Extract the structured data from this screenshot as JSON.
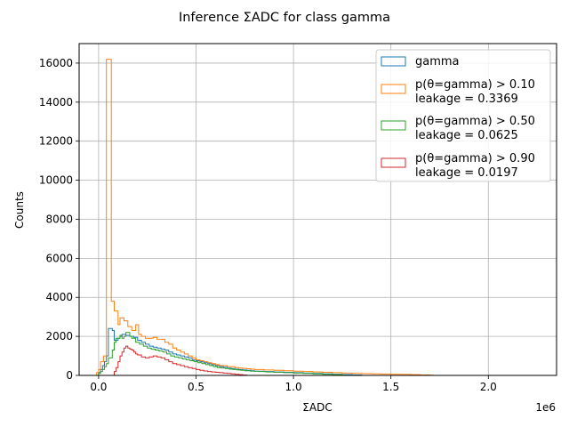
{
  "chart_data": {
    "type": "histogram",
    "title": "Inference ΣADC for class gamma",
    "xlabel": "ΣADC",
    "ylabel": "Counts",
    "x_offset_label": "1e6",
    "xlim": [
      -0.1,
      2.35
    ],
    "ylim": [
      0,
      17000
    ],
    "x_ticks": [
      0.0,
      0.5,
      1.0,
      1.5,
      2.0
    ],
    "x_tick_labels": [
      "0.0",
      "0.5",
      "1.0",
      "1.5",
      "2.0"
    ],
    "y_ticks": [
      0,
      2000,
      4000,
      6000,
      8000,
      10000,
      12000,
      14000,
      16000
    ],
    "y_tick_labels": [
      "0",
      "2000",
      "4000",
      "6000",
      "8000",
      "10000",
      "12000",
      "14000",
      "16000"
    ],
    "grid": true,
    "legend_position": "top-right",
    "series": [
      {
        "name": "gamma",
        "leakage": "",
        "color": "#1f77b4",
        "values": [
          [
            0.0,
            150
          ],
          [
            0.01,
            300
          ],
          [
            0.02,
            500
          ],
          [
            0.03,
            700
          ],
          [
            0.04,
            1000
          ],
          [
            0.05,
            2400
          ],
          [
            0.07,
            2300
          ],
          [
            0.08,
            1800
          ],
          [
            0.1,
            1900
          ],
          [
            0.11,
            2000
          ],
          [
            0.12,
            2100
          ],
          [
            0.14,
            2050
          ],
          [
            0.16,
            2000
          ],
          [
            0.18,
            1950
          ],
          [
            0.2,
            1800
          ],
          [
            0.22,
            1700
          ],
          [
            0.24,
            1600
          ],
          [
            0.26,
            1500
          ],
          [
            0.28,
            1450
          ],
          [
            0.3,
            1400
          ],
          [
            0.32,
            1350
          ],
          [
            0.34,
            1300
          ],
          [
            0.36,
            1200
          ],
          [
            0.38,
            1100
          ],
          [
            0.4,
            1050
          ],
          [
            0.42,
            1000
          ],
          [
            0.44,
            950
          ],
          [
            0.46,
            900
          ],
          [
            0.48,
            800
          ],
          [
            0.5,
            750
          ],
          [
            0.52,
            700
          ],
          [
            0.54,
            650
          ],
          [
            0.56,
            600
          ],
          [
            0.58,
            550
          ],
          [
            0.6,
            500
          ],
          [
            0.62,
            450
          ],
          [
            0.64,
            420
          ],
          [
            0.66,
            380
          ],
          [
            0.68,
            350
          ],
          [
            0.7,
            320
          ],
          [
            0.72,
            300
          ],
          [
            0.74,
            280
          ],
          [
            0.76,
            260
          ],
          [
            0.78,
            240
          ],
          [
            0.8,
            220
          ],
          [
            0.85,
            200
          ],
          [
            0.9,
            180
          ],
          [
            0.95,
            160
          ],
          [
            1.0,
            140
          ],
          [
            1.05,
            120
          ],
          [
            1.1,
            100
          ],
          [
            1.15,
            80
          ],
          [
            1.2,
            60
          ],
          [
            1.25,
            40
          ],
          [
            1.3,
            25
          ],
          [
            1.35,
            0
          ]
        ]
      },
      {
        "name": "p(θ=gamma) > 0.10",
        "leakage": "leakage = 0.3369",
        "color": "#ff7f0e",
        "values": [
          [
            -0.01,
            150
          ],
          [
            0.0,
            300
          ],
          [
            0.01,
            700
          ],
          [
            0.025,
            1000
          ],
          [
            0.04,
            16200
          ],
          [
            0.065,
            3800
          ],
          [
            0.08,
            3300
          ],
          [
            0.1,
            2600
          ],
          [
            0.11,
            2950
          ],
          [
            0.13,
            2800
          ],
          [
            0.15,
            2500
          ],
          [
            0.17,
            2300
          ],
          [
            0.19,
            2600
          ],
          [
            0.205,
            2100
          ],
          [
            0.22,
            2000
          ],
          [
            0.24,
            1900
          ],
          [
            0.26,
            1900
          ],
          [
            0.28,
            1950
          ],
          [
            0.3,
            1850
          ],
          [
            0.32,
            1850
          ],
          [
            0.34,
            1700
          ],
          [
            0.36,
            1600
          ],
          [
            0.38,
            1400
          ],
          [
            0.4,
            1300
          ],
          [
            0.42,
            1200
          ],
          [
            0.44,
            1100
          ],
          [
            0.46,
            1000
          ],
          [
            0.48,
            900
          ],
          [
            0.5,
            800
          ],
          [
            0.52,
            750
          ],
          [
            0.54,
            700
          ],
          [
            0.56,
            650
          ],
          [
            0.58,
            600
          ],
          [
            0.6,
            550
          ],
          [
            0.62,
            500
          ],
          [
            0.64,
            500
          ],
          [
            0.66,
            450
          ],
          [
            0.68,
            450
          ],
          [
            0.7,
            400
          ],
          [
            0.72,
            380
          ],
          [
            0.74,
            360
          ],
          [
            0.76,
            340
          ],
          [
            0.78,
            320
          ],
          [
            0.8,
            300
          ],
          [
            0.85,
            280
          ],
          [
            0.9,
            260
          ],
          [
            0.95,
            240
          ],
          [
            1.0,
            220
          ],
          [
            1.05,
            200
          ],
          [
            1.1,
            180
          ],
          [
            1.15,
            160
          ],
          [
            1.2,
            140
          ],
          [
            1.25,
            120
          ],
          [
            1.3,
            100
          ],
          [
            1.35,
            90
          ],
          [
            1.4,
            80
          ],
          [
            1.45,
            70
          ],
          [
            1.5,
            60
          ],
          [
            1.55,
            50
          ],
          [
            1.6,
            40
          ],
          [
            1.65,
            25
          ],
          [
            1.7,
            10
          ],
          [
            1.72,
            0
          ]
        ]
      },
      {
        "name": "p(θ=gamma) > 0.50",
        "leakage": "leakage = 0.0625",
        "color": "#2ca02c",
        "values": [
          [
            0.0,
            100
          ],
          [
            0.01,
            200
          ],
          [
            0.02,
            300
          ],
          [
            0.03,
            450
          ],
          [
            0.04,
            600
          ],
          [
            0.05,
            900
          ],
          [
            0.07,
            1300
          ],
          [
            0.08,
            1700
          ],
          [
            0.09,
            1900
          ],
          [
            0.11,
            2050
          ],
          [
            0.12,
            1900
          ],
          [
            0.13,
            2000
          ],
          [
            0.14,
            2200
          ],
          [
            0.16,
            2000
          ],
          [
            0.17,
            1900
          ],
          [
            0.19,
            1700
          ],
          [
            0.21,
            1600
          ],
          [
            0.23,
            1500
          ],
          [
            0.25,
            1400
          ],
          [
            0.27,
            1350
          ],
          [
            0.29,
            1300
          ],
          [
            0.31,
            1250
          ],
          [
            0.33,
            1200
          ],
          [
            0.35,
            1100
          ],
          [
            0.37,
            1000
          ],
          [
            0.39,
            950
          ],
          [
            0.41,
            900
          ],
          [
            0.43,
            850
          ],
          [
            0.45,
            800
          ],
          [
            0.47,
            750
          ],
          [
            0.49,
            700
          ],
          [
            0.51,
            650
          ],
          [
            0.53,
            600
          ],
          [
            0.55,
            550
          ],
          [
            0.57,
            500
          ],
          [
            0.59,
            450
          ],
          [
            0.61,
            400
          ],
          [
            0.63,
            380
          ],
          [
            0.65,
            350
          ],
          [
            0.67,
            320
          ],
          [
            0.69,
            300
          ],
          [
            0.71,
            280
          ],
          [
            0.73,
            260
          ],
          [
            0.75,
            240
          ],
          [
            0.78,
            220
          ],
          [
            0.82,
            200
          ],
          [
            0.86,
            180
          ],
          [
            0.9,
            160
          ],
          [
            0.95,
            140
          ],
          [
            1.0,
            120
          ],
          [
            1.05,
            100
          ],
          [
            1.1,
            80
          ],
          [
            1.15,
            60
          ],
          [
            1.2,
            40
          ],
          [
            1.25,
            20
          ],
          [
            1.27,
            0
          ]
        ]
      },
      {
        "name": "p(θ=gamma) > 0.90",
        "leakage": "leakage = 0.0197",
        "color": "#d62728",
        "values": [
          [
            0.08,
            200
          ],
          [
            0.09,
            400
          ],
          [
            0.1,
            700
          ],
          [
            0.11,
            1000
          ],
          [
            0.12,
            1200
          ],
          [
            0.13,
            1400
          ],
          [
            0.14,
            1500
          ],
          [
            0.15,
            1400
          ],
          [
            0.16,
            1350
          ],
          [
            0.17,
            1300
          ],
          [
            0.18,
            1200
          ],
          [
            0.19,
            1100
          ],
          [
            0.2,
            1050
          ],
          [
            0.22,
            950
          ],
          [
            0.24,
            900
          ],
          [
            0.26,
            950
          ],
          [
            0.28,
            1000
          ],
          [
            0.3,
            950
          ],
          [
            0.32,
            900
          ],
          [
            0.34,
            800
          ],
          [
            0.36,
            700
          ],
          [
            0.38,
            600
          ],
          [
            0.4,
            550
          ],
          [
            0.42,
            500
          ],
          [
            0.44,
            450
          ],
          [
            0.46,
            400
          ],
          [
            0.48,
            350
          ],
          [
            0.5,
            300
          ],
          [
            0.52,
            260
          ],
          [
            0.54,
            230
          ],
          [
            0.56,
            200
          ],
          [
            0.58,
            180
          ],
          [
            0.6,
            160
          ],
          [
            0.62,
            140
          ],
          [
            0.64,
            120
          ],
          [
            0.66,
            100
          ],
          [
            0.68,
            80
          ],
          [
            0.7,
            60
          ],
          [
            0.72,
            40
          ],
          [
            0.74,
            20
          ],
          [
            0.76,
            0
          ]
        ]
      }
    ]
  }
}
